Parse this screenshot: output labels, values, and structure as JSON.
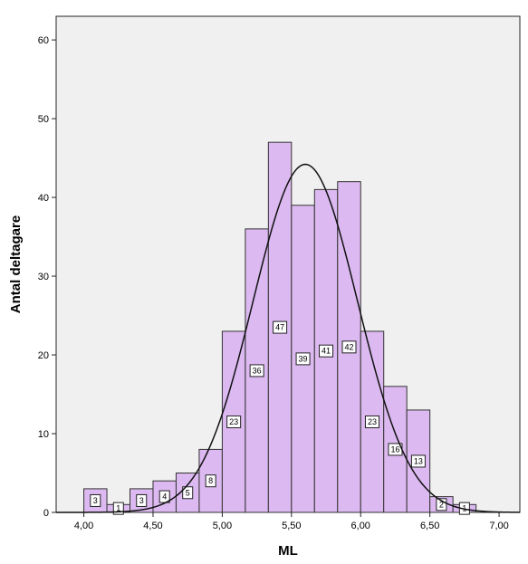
{
  "chart_data": {
    "type": "bar",
    "subtype": "histogram",
    "xlabel": "ML",
    "ylabel": "Antal deltagare",
    "xlim": [
      3.8,
      7.15
    ],
    "ylim": [
      0,
      63
    ],
    "x_ticks": [
      4.0,
      4.5,
      5.0,
      5.5,
      6.0,
      6.5,
      7.0
    ],
    "x_tick_labels": [
      "4,00",
      "4,50",
      "5,00",
      "5,50",
      "6,00",
      "6,50",
      "7,00"
    ],
    "y_ticks": [
      0,
      10,
      20,
      30,
      40,
      50,
      60
    ],
    "y_tick_labels": [
      "0",
      "10",
      "20",
      "30",
      "40",
      "50",
      "60"
    ],
    "bin_width": 0.1667,
    "bins": [
      {
        "x0": 4.0,
        "value": 3,
        "label": "3"
      },
      {
        "x0": 4.1667,
        "value": 1,
        "label": "1"
      },
      {
        "x0": 4.3333,
        "value": 3,
        "label": "3"
      },
      {
        "x0": 4.5,
        "value": 4,
        "label": "4"
      },
      {
        "x0": 4.6667,
        "value": 5,
        "label": "5"
      },
      {
        "x0": 4.8333,
        "value": 8,
        "label": "8"
      },
      {
        "x0": 5.0,
        "value": 23,
        "label": "23"
      },
      {
        "x0": 5.1667,
        "value": 36,
        "label": "36"
      },
      {
        "x0": 5.3333,
        "value": 47,
        "label": "47"
      },
      {
        "x0": 5.5,
        "value": 39,
        "label": "39"
      },
      {
        "x0": 5.6667,
        "value": 41,
        "label": "41"
      },
      {
        "x0": 5.8333,
        "value": 42,
        "label": "42"
      },
      {
        "x0": 6.0,
        "value": 23,
        "label": "23"
      },
      {
        "x0": 6.1667,
        "value": 16,
        "label": "16"
      },
      {
        "x0": 6.3333,
        "value": 13,
        "label": "13"
      },
      {
        "x0": 6.5,
        "value": 2,
        "label": "2"
      },
      {
        "x0": 6.6667,
        "value": 1,
        "label": "1"
      }
    ],
    "normal_curve": {
      "mean": 5.6,
      "sd": 0.3775,
      "peak": 44.2
    },
    "colors": {
      "bar_fill": "#dcb9f0",
      "bar_stroke": "#333333",
      "plot_background": "#f0f0f0",
      "curve": "#111111"
    },
    "grid": false,
    "legend": "none"
  }
}
